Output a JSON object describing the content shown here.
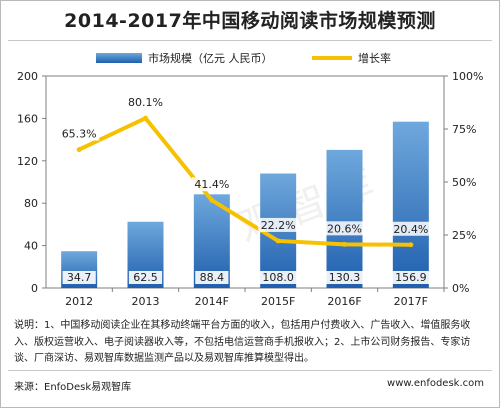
{
  "chart_data": {
    "type": "bar+line",
    "title": "2014-2017年中国移动阅读市场规模预测",
    "categories": [
      "2012",
      "2013",
      "2014F",
      "2015F",
      "2016F",
      "2017F"
    ],
    "bar_series": {
      "name": "市场规模（亿元 人民币）",
      "values": [
        34.7,
        62.5,
        88.4,
        108.0,
        130.3,
        156.9
      ],
      "labels": [
        "34.7",
        "62.5",
        "88.4",
        "108.0",
        "130.3",
        "156.9"
      ],
      "axis": "left"
    },
    "line_series": {
      "name": "增长率",
      "values": [
        65.3,
        80.1,
        41.4,
        22.2,
        20.6,
        20.4
      ],
      "labels": [
        "65.3%",
        "80.1%",
        "41.4%",
        "22.2%",
        "20.6%",
        "20.4%"
      ],
      "axis": "right"
    },
    "y_left": {
      "range": [
        0,
        200
      ],
      "ticks": [
        "0",
        "40",
        "80",
        "120",
        "160",
        "200"
      ]
    },
    "y_right": {
      "range": [
        0,
        100
      ],
      "ticks": [
        "0%",
        "25%",
        "50%",
        "75%",
        "100%"
      ]
    },
    "grid": false,
    "legend": "top",
    "colors": {
      "bar_top": "#6fa8dc",
      "bar_bottom": "#1f5fae",
      "line": "#f6c100",
      "axis": "#7f7f7f"
    }
  },
  "note": "说明：1、中国移动阅读企业在其移动终端平台方面的收入，包括用户付费收入、广告收入、增值服务收入、版权运营收入、电子阅读器收入等，不包括电信运营商手机报收入；2、上市公司财务报告、专家访谈、厂商深访、易观智库数据监测产品以及易观智库推算模型得出。",
  "source": "来源：EnfoDesk易观智库",
  "site": "www.enfodesk.com",
  "watermark": "易观智库"
}
